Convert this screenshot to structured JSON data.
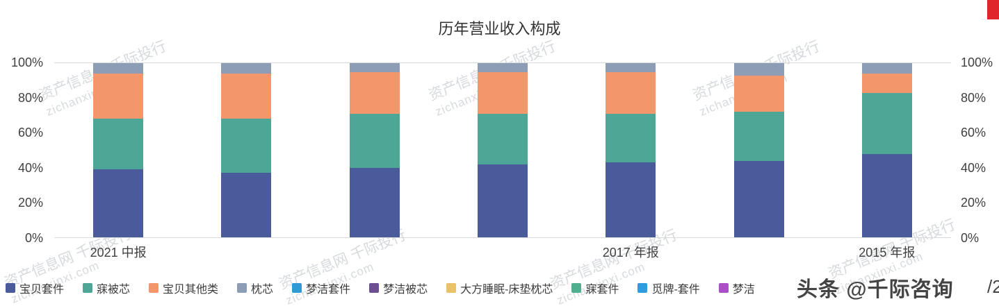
{
  "title": "历年营业收入构成",
  "chart_data": {
    "type": "bar",
    "stacked": true,
    "percent": true,
    "title": "历年营业收入构成",
    "xlabel": "",
    "ylabel": "",
    "ylim": [
      0,
      100
    ],
    "y_ticks": [
      "0%",
      "20%",
      "40%",
      "60%",
      "80%",
      "100%"
    ],
    "y_axis_sides": [
      "left",
      "right"
    ],
    "legend_position": "bottom",
    "grid": false,
    "categories": [
      "2021 中报",
      "",
      "",
      "",
      "2017 年报",
      "",
      "2015 年报"
    ],
    "series": [
      {
        "name": "宝贝套件",
        "color": "#4a5b9c",
        "values": [
          39,
          37,
          40,
          42,
          43,
          44,
          48
        ]
      },
      {
        "name": "寐被芯",
        "color": "#4da696",
        "values": [
          29,
          31,
          31,
          29,
          28,
          28,
          35
        ]
      },
      {
        "name": "宝贝其他类",
        "color": "#f2976c",
        "values": [
          26,
          26,
          24,
          24,
          24,
          21,
          11
        ]
      },
      {
        "name": "枕芯",
        "color": "#8d9db6",
        "values": [
          6,
          6,
          5,
          5,
          5,
          7,
          6
        ]
      }
    ]
  },
  "legend": {
    "items": [
      {
        "label": "宝贝套件",
        "color": "#4a5b9c"
      },
      {
        "label": "寐被芯",
        "color": "#4da696"
      },
      {
        "label": "宝贝其他类",
        "color": "#f2976c"
      },
      {
        "label": "枕芯",
        "color": "#8d9db6"
      },
      {
        "label": "梦洁套件",
        "color": "#2f9bd4"
      },
      {
        "label": "梦洁被芯",
        "color": "#6c4e92"
      },
      {
        "label": "大方睡眠-床垫枕芯",
        "color": "#eac268"
      },
      {
        "label": "寐套件",
        "color": "#4fb08f"
      },
      {
        "label": "觅牌-套件",
        "color": "#2f9ce0"
      },
      {
        "label": "梦洁",
        "color": "#ab4fc8"
      }
    ]
  },
  "watermark": {
    "line1": "资产信息网 千际投行",
    "line2": "zichanxinxi.com"
  },
  "overlay": {
    "brand": "头条 @千际咨询",
    "page": "/2"
  }
}
